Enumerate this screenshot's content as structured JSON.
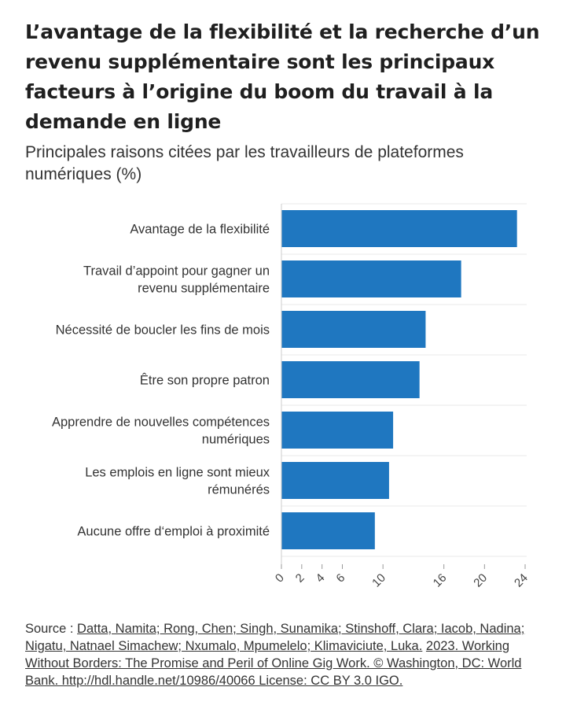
{
  "header": {
    "title": "L’avantage de la flexibilité et la recherche d’un revenu supplémentaire sont les principaux facteurs à l’origine du boom du travail à la demande en ligne",
    "subtitle": "Principales raisons citées par les travailleurs de plateformes numériques (%)"
  },
  "chart_data": {
    "type": "bar",
    "orientation": "horizontal",
    "title": "L’avantage de la flexibilité et la recherche d’un revenu supplémentaire sont les principaux facteurs à l’origine du boom du travail à la demande en ligne",
    "subtitle": "Principales raisons citées par les travailleurs de plateformes numériques (%)",
    "categories": [
      "Avantage de la flexibilité",
      "Travail d’appoint pour gagner un revenu supplémentaire",
      "Nécessité de boucler les fins de mois",
      "Être son propre patron",
      "Apprendre de nouvelles compétences numériques",
      "Les emplois en ligne sont mieux rémunérés",
      "Aucune offre d’emploi à proximité"
    ],
    "category_lines": [
      [
        "Avantage de la flexibilité"
      ],
      [
        "Travail d’appoint pour gagner un",
        "revenu supplémentaire"
      ],
      [
        "Nécessité de boucler les fins de mois"
      ],
      [
        "Être son propre patron"
      ],
      [
        "Apprendre de nouvelles compétences",
        "numériques"
      ],
      [
        "Les emplois en ligne sont mieux",
        "rémunérés"
      ],
      [
        "Aucune offre d‘emploi à proximité"
      ]
    ],
    "values": [
      23.2,
      17.7,
      14.2,
      13.6,
      11.0,
      10.6,
      9.2
    ],
    "xlim": [
      0,
      24
    ],
    "xticks": [
      0,
      2,
      4,
      6,
      10,
      16,
      20,
      24
    ],
    "grid": true,
    "bar_color": "#1f77c0",
    "grid_color": "#e8e8e8"
  },
  "source": {
    "prefix": "Source : ",
    "authors": "Datta, Namita; Rong, Chen; Singh, Sunamika; Stinshoff, Clara; Iacob, Nadina; Nigatu, Natnael Simachew; Nxumalo, Mpumelelo; Klimaviciute, Luka.",
    "citation": "2023. Working Without Borders: The Promise and Peril of Online Gig Work. © Washington, DC: World Bank. http://hdl.handle.net/10986/40066 License: CC BY 3.0 IGO."
  }
}
